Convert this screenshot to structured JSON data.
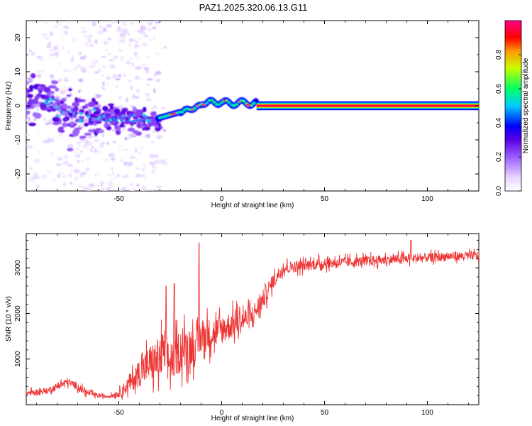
{
  "title": "PAZ1.2025.320.06.13.G11",
  "chart_data": [
    {
      "type": "heatmap",
      "title": "PAZ1.2025.320.06.13.G11",
      "xlabel": "Height of straight line (km)",
      "ylabel": "Frequency (Hz)",
      "xlim": [
        -95,
        125
      ],
      "ylim": [
        -25,
        25
      ],
      "xticks": [
        -50,
        0,
        50,
        100
      ],
      "yticks": [
        -20,
        -10,
        0,
        10,
        20
      ],
      "colorbar": {
        "label": "Normalized spectral amplitude",
        "range": [
          0,
          1
        ],
        "ticks": [
          0.0,
          0.2,
          0.4,
          0.6,
          0.8
        ],
        "colormap": [
          "#ffffff",
          "#e8d6ff",
          "#9b5cff",
          "#6a00e0",
          "#0000ff",
          "#00ccff",
          "#00ff66",
          "#c8ff00",
          "#ff9900",
          "#ff0000",
          "#ff0088"
        ]
      },
      "features": [
        {
          "name": "scattered noise",
          "x_range": [
            -95,
            -30
          ],
          "freq_range": [
            -25,
            25
          ],
          "amplitude": 0.1
        },
        {
          "name": "dispersed signal",
          "x_range": [
            -95,
            -30
          ],
          "freq_center": -3,
          "amplitude": 0.3
        },
        {
          "name": "wandering carrier",
          "x_range": [
            -30,
            17
          ],
          "freq_center": 0.5,
          "amplitude": 0.55
        },
        {
          "name": "steady carrier",
          "x_range": [
            17,
            125
          ],
          "freq_center": 0,
          "amplitude": 1.0
        }
      ]
    },
    {
      "type": "line",
      "xlabel": "Height of straight line (km)",
      "ylabel": "SNR (10 * v/v)",
      "xlim": [
        -95,
        125
      ],
      "ylim": [
        0,
        3750
      ],
      "xticks": [
        -50,
        0,
        50,
        100
      ],
      "yticks": [
        1000,
        2000,
        3000
      ],
      "color": "#ee3333",
      "series": [
        {
          "name": "SNR",
          "x": [
            -95,
            -85,
            -75,
            -70,
            -65,
            -60,
            -55,
            -50,
            -45,
            -40,
            -35,
            -30,
            -28,
            -25,
            -20,
            -15,
            -12,
            -11,
            -10,
            -5,
            0,
            5,
            10,
            15,
            20,
            25,
            30,
            40,
            50,
            60,
            70,
            80,
            90,
            100,
            110,
            125
          ],
          "mean": [
            250,
            300,
            500,
            400,
            250,
            200,
            180,
            250,
            450,
            700,
            900,
            1000,
            1200,
            900,
            1200,
            1300,
            1200,
            1400,
            1500,
            1550,
            1650,
            1750,
            1850,
            1950,
            2300,
            2700,
            3000,
            3050,
            3100,
            3120,
            3150,
            3170,
            3200,
            3220,
            3250,
            3270
          ],
          "spread": [
            120,
            120,
            150,
            150,
            120,
            80,
            60,
            150,
            350,
            550,
            750,
            900,
            900,
            700,
            900,
            800,
            700,
            800,
            700,
            650,
            600,
            550,
            500,
            450,
            400,
            300,
            250,
            220,
            220,
            200,
            200,
            200,
            200,
            180,
            180,
            180
          ]
        }
      ],
      "peaks": [
        {
          "x": -11,
          "y": 3550
        },
        {
          "x": -27,
          "y": 2600
        },
        {
          "x": -23,
          "y": 2650
        },
        {
          "x": 92,
          "y": 3600
        }
      ]
    }
  ]
}
